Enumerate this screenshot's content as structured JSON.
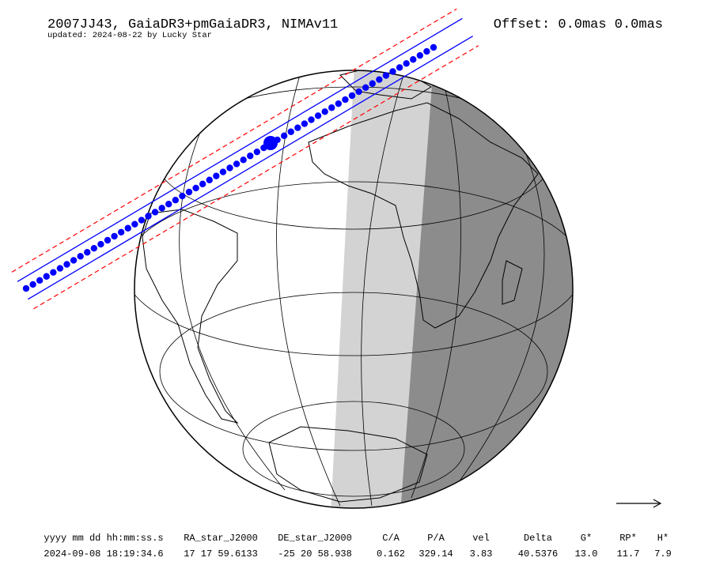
{
  "header": {
    "title": "2007JJ43, GaiaDR3+pmGaiaDR3, NIMAv11",
    "updated": "updated: 2024-08-22 by Lucky Star",
    "offset": "Offset: 0.0mas 0.0mas"
  },
  "table": {
    "columns": [
      "yyyy mm dd hh:mm:ss.s",
      "RA_star_J2000",
      "DE_star_J2000",
      "C/A",
      "P/A",
      "vel",
      "Delta",
      "G*",
      "RP*",
      "H*"
    ],
    "row": [
      "2024-09-08 18:19:34.6",
      "17 17 59.6133",
      "-25 20 58.938",
      "0.162",
      "329.14",
      "3.83",
      "40.5376",
      "13.0",
      "11.7",
      "7.9"
    ]
  }
}
